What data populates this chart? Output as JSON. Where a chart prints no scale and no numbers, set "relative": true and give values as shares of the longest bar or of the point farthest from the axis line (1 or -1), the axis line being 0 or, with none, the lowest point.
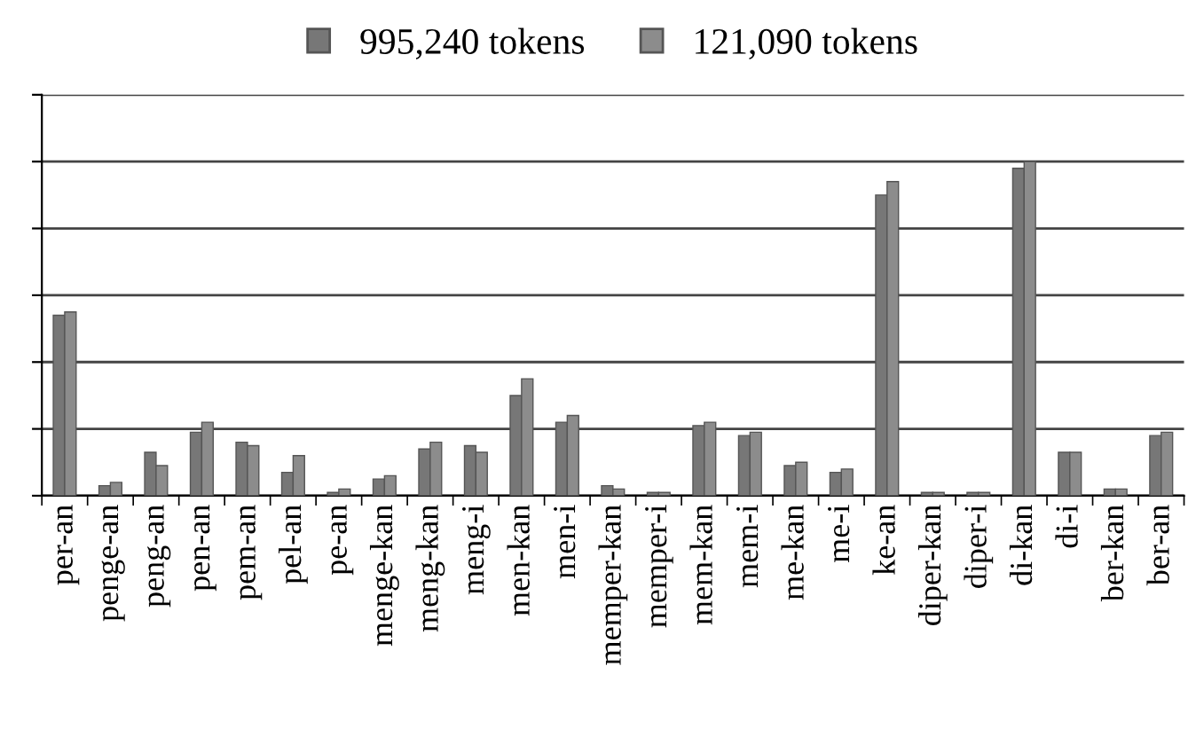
{
  "chart_data": {
    "type": "bar",
    "relative": true,
    "grid": "y",
    "legend": "top",
    "categories": [
      "per-an",
      "penge-an",
      "peng-an",
      "pen-an",
      "pem-an",
      "pel-an",
      "pe-an",
      "menge-kan",
      "meng-kan",
      "meng-i",
      "men-kan",
      "men-i",
      "memper-kan",
      "memper-i",
      "mem-kan",
      "mem-i",
      "me-kan",
      "me-i",
      "ke-an",
      "diper-kan",
      "diper-i",
      "di-kan",
      "di-i",
      "ber-kan",
      "ber-an"
    ],
    "series": [
      {
        "name": "995,240 tokens",
        "color": "#777777",
        "values": [
          0.54,
          0.03,
          0.13,
          0.19,
          0.16,
          0.07,
          0.01,
          0.05,
          0.14,
          0.15,
          0.3,
          0.22,
          0.03,
          0.01,
          0.21,
          0.18,
          0.09,
          0.07,
          0.9,
          0.01,
          0.01,
          0.98,
          0.13,
          0.02,
          0.18
        ]
      },
      {
        "name": "121,090 tokens",
        "color": "#8c8c8c",
        "values": [
          0.55,
          0.04,
          0.09,
          0.22,
          0.15,
          0.12,
          0.02,
          0.06,
          0.16,
          0.13,
          0.35,
          0.24,
          0.02,
          0.01,
          0.22,
          0.19,
          0.1,
          0.08,
          0.94,
          0.01,
          0.01,
          1.0,
          0.13,
          0.02,
          0.19
        ]
      }
    ]
  }
}
